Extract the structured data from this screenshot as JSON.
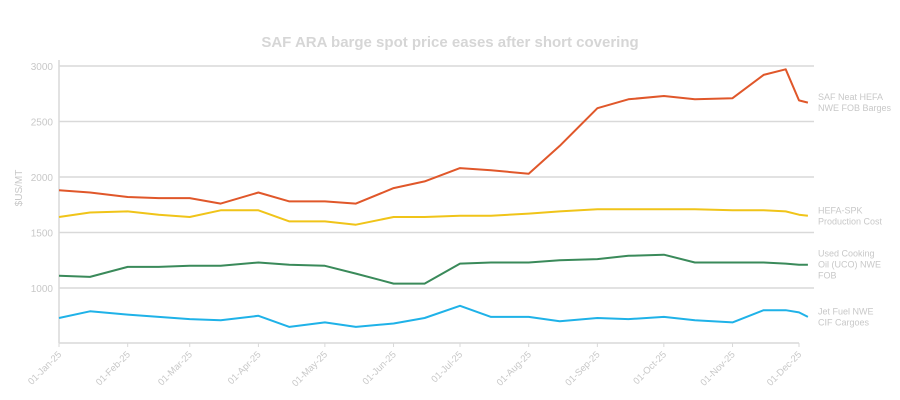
{
  "chart_data": {
    "type": "line",
    "title": "SAF ARA barge spot price eases after short covering",
    "xlabel": "",
    "ylabel": "$US/MT",
    "ylim": [
      520,
      3000
    ],
    "yticks": [
      1000,
      1500,
      2000,
      2500,
      3000
    ],
    "grid": true,
    "legend_position": "right-inline",
    "x_tick_labels": [
      "01-Jan-25",
      "01-Feb-25",
      "01-Mar-25",
      "01-Apr-25",
      "01-May-25",
      "01-Jun-25",
      "01-Jul-25",
      "01-Aug-25",
      "01-Sep-25",
      "01-Oct-25",
      "01-Nov-25",
      "01-Dec-25"
    ],
    "x": [
      "01-Jan-25",
      "15-Jan-25",
      "01-Feb-25",
      "15-Feb-25",
      "01-Mar-25",
      "15-Mar-25",
      "01-Apr-25",
      "15-Apr-25",
      "01-May-25",
      "15-May-25",
      "01-Jun-25",
      "15-Jun-25",
      "01-Jul-25",
      "15-Jul-25",
      "01-Aug-25",
      "15-Aug-25",
      "01-Sep-25",
      "15-Sep-25",
      "01-Oct-25",
      "15-Oct-25",
      "01-Nov-25",
      "15-Nov-25",
      "25-Nov-25",
      "01-Dec-25",
      "05-Dec-25"
    ],
    "series": [
      {
        "name": "SAF Neat HEFA NWE FOB Barges",
        "color": "#e0572a",
        "values": [
          1880,
          1860,
          1820,
          1810,
          1810,
          1760,
          1860,
          1780,
          1780,
          1760,
          1900,
          1960,
          2080,
          2060,
          2030,
          2280,
          2620,
          2700,
          2730,
          2700,
          2710,
          2920,
          2970,
          2690,
          2670
        ]
      },
      {
        "name": "HEFA-SPK Production Cost",
        "color": "#f0c419",
        "values": [
          1640,
          1680,
          1690,
          1660,
          1640,
          1700,
          1700,
          1600,
          1600,
          1570,
          1640,
          1640,
          1650,
          1650,
          1670,
          1690,
          1710,
          1710,
          1710,
          1710,
          1700,
          1700,
          1690,
          1660,
          1650
        ]
      },
      {
        "name": "Used Cooking Oil (UCO) NWE FOB",
        "color": "#3a8a5a",
        "values": [
          1110,
          1100,
          1190,
          1190,
          1200,
          1200,
          1230,
          1210,
          1200,
          1130,
          1040,
          1040,
          1220,
          1230,
          1230,
          1250,
          1260,
          1290,
          1300,
          1230,
          1230,
          1230,
          1220,
          1210,
          1210
        ]
      },
      {
        "name": "Jet Fuel NWE CIF Cargoes",
        "color": "#1fb2e8",
        "values": [
          730,
          790,
          760,
          740,
          720,
          710,
          750,
          650,
          690,
          650,
          680,
          730,
          840,
          740,
          740,
          700,
          730,
          720,
          740,
          710,
          690,
          800,
          800,
          780,
          740
        ]
      }
    ]
  }
}
